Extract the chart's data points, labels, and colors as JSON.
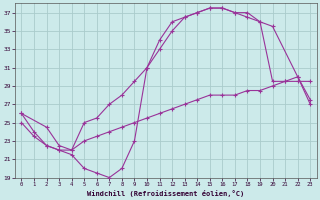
{
  "xlabel": "Windchill (Refroidissement éolien,°C)",
  "xlim": [
    -0.5,
    23.5
  ],
  "ylim": [
    19,
    38
  ],
  "yticks": [
    19,
    21,
    23,
    25,
    27,
    29,
    31,
    33,
    35,
    37
  ],
  "xticks": [
    0,
    1,
    2,
    3,
    4,
    5,
    6,
    7,
    8,
    9,
    10,
    11,
    12,
    13,
    14,
    15,
    16,
    17,
    18,
    19,
    20,
    21,
    22,
    23
  ],
  "bg_color": "#cceaea",
  "line_color": "#993399",
  "grid_color": "#aacccc",
  "line1_x": [
    0,
    1,
    2,
    3,
    4,
    5,
    6,
    7,
    8,
    9,
    10,
    11,
    12,
    13,
    14,
    15,
    16,
    17,
    18,
    19,
    20,
    21,
    22,
    23
  ],
  "line1_y": [
    26,
    24,
    22.5,
    22,
    21.5,
    20,
    19.5,
    19,
    20,
    23,
    31,
    34,
    36,
    36.5,
    37,
    37.5,
    37.5,
    37,
    37,
    36,
    29.5,
    29.5,
    29.5,
    29.5
  ],
  "line2_x": [
    0,
    2,
    3,
    4,
    5,
    6,
    7,
    8,
    9,
    10,
    11,
    12,
    13,
    14,
    15,
    16,
    17,
    18,
    19,
    20,
    22,
    23
  ],
  "line2_y": [
    26,
    24.5,
    22.5,
    22,
    25,
    25.5,
    27,
    28,
    29.5,
    31,
    33,
    35,
    36.5,
    37,
    37.5,
    37.5,
    37,
    36.5,
    36,
    35.5,
    30,
    27
  ],
  "line3_x": [
    0,
    1,
    2,
    3,
    4,
    5,
    6,
    7,
    8,
    9,
    10,
    11,
    12,
    13,
    14,
    15,
    16,
    17,
    18,
    19,
    20,
    21,
    22,
    23
  ],
  "line3_y": [
    25,
    23.5,
    22.5,
    22,
    22,
    23,
    23.5,
    24,
    24.5,
    25,
    25.5,
    26,
    26.5,
    27,
    27.5,
    28,
    28,
    28,
    28.5,
    28.5,
    29,
    29.5,
    30,
    27.5
  ]
}
